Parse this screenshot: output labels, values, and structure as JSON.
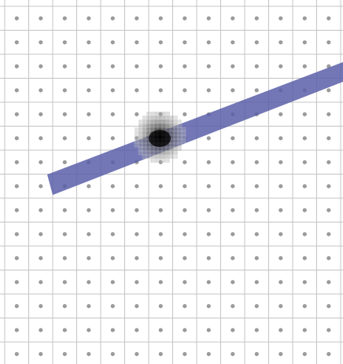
{
  "colors": {
    "background": "#ffffff",
    "grid_line": "#c4c4c4",
    "grid_dot": "#9a9a9a",
    "stroke": "#5a5fa8",
    "blob_core": "#000000",
    "blob_shade": "#6e6e6e"
  },
  "grid": {
    "columns": 15,
    "rows": 16
  },
  "stroke": {
    "shape": "diagonal-brush-stroke",
    "opacity": 0.85
  },
  "blob": {
    "shape": "pixelated-dark-blob"
  }
}
